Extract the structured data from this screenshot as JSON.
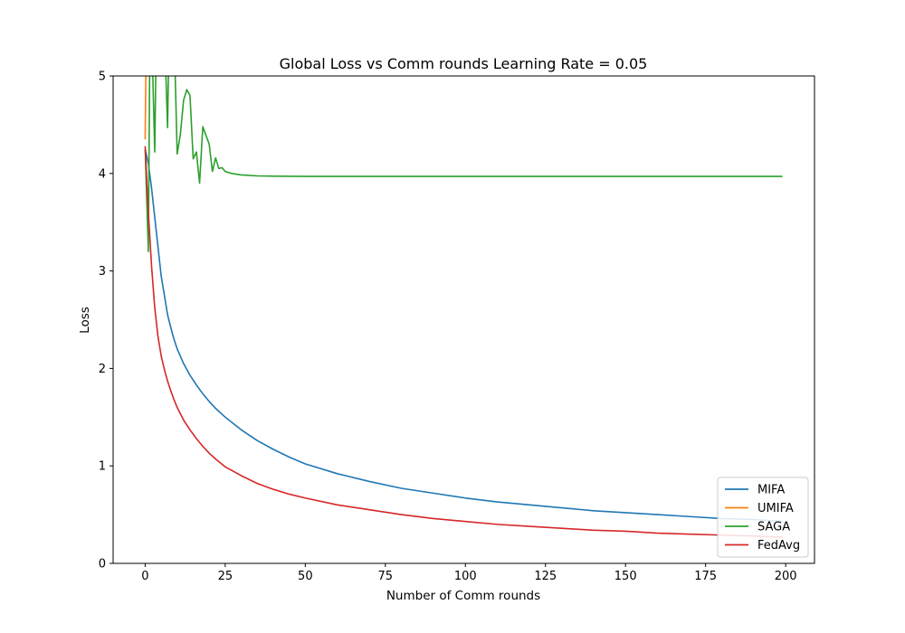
{
  "chart_data": {
    "type": "line",
    "title": "Global Loss vs Comm rounds Learning Rate = 0.05",
    "xlabel": "Number of Comm rounds",
    "ylabel": "Loss",
    "xlim": [
      -10,
      209
    ],
    "ylim": [
      0,
      5
    ],
    "xticks": [
      0,
      25,
      50,
      75,
      100,
      125,
      150,
      175,
      200
    ],
    "yticks": [
      0,
      1,
      2,
      3,
      4,
      5
    ],
    "grid": false,
    "legend_position": "lower-right",
    "series": [
      {
        "name": "MIFA",
        "color": "#1f77b4",
        "points": [
          [
            0,
            4.25
          ],
          [
            1,
            4.1
          ],
          [
            2,
            3.85
          ],
          [
            3,
            3.55
          ],
          [
            4,
            3.25
          ],
          [
            5,
            2.95
          ],
          [
            6,
            2.75
          ],
          [
            7,
            2.55
          ],
          [
            8,
            2.42
          ],
          [
            9,
            2.3
          ],
          [
            10,
            2.2
          ],
          [
            12,
            2.05
          ],
          [
            14,
            1.93
          ],
          [
            16,
            1.83
          ],
          [
            18,
            1.74
          ],
          [
            20,
            1.66
          ],
          [
            22,
            1.59
          ],
          [
            25,
            1.5
          ],
          [
            30,
            1.37
          ],
          [
            35,
            1.26
          ],
          [
            40,
            1.17
          ],
          [
            45,
            1.09
          ],
          [
            50,
            1.02
          ],
          [
            60,
            0.92
          ],
          [
            70,
            0.84
          ],
          [
            80,
            0.77
          ],
          [
            90,
            0.72
          ],
          [
            100,
            0.67
          ],
          [
            110,
            0.63
          ],
          [
            120,
            0.6
          ],
          [
            130,
            0.57
          ],
          [
            140,
            0.54
          ],
          [
            150,
            0.52
          ],
          [
            160,
            0.5
          ],
          [
            170,
            0.48
          ],
          [
            180,
            0.46
          ],
          [
            190,
            0.45
          ],
          [
            199,
            0.43
          ]
        ]
      },
      {
        "name": "UMIFA",
        "color": "#ff7f0e",
        "points": [
          [
            0,
            4.35
          ],
          [
            0.4,
            5.5
          ]
        ]
      },
      {
        "name": "SAGA",
        "color": "#2ca02c",
        "points": [
          [
            0,
            4.25
          ],
          [
            1,
            3.2
          ],
          [
            1.5,
            5.5
          ],
          [
            2,
            5.5
          ],
          [
            3,
            4.22
          ],
          [
            3.5,
            5.5
          ],
          [
            6,
            5.5
          ],
          [
            7,
            4.47
          ],
          [
            7.5,
            5.5
          ],
          [
            9,
            5.5
          ],
          [
            10,
            4.2
          ],
          [
            11,
            4.4
          ],
          [
            12,
            4.75
          ],
          [
            13,
            4.86
          ],
          [
            14,
            4.8
          ],
          [
            15,
            4.15
          ],
          [
            16,
            4.22
          ],
          [
            17,
            3.9
          ],
          [
            18,
            4.48
          ],
          [
            20,
            4.3
          ],
          [
            21,
            4.02
          ],
          [
            22,
            4.16
          ],
          [
            23,
            4.05
          ],
          [
            24,
            4.06
          ],
          [
            25,
            4.02
          ],
          [
            27,
            4.0
          ],
          [
            30,
            3.985
          ],
          [
            35,
            3.975
          ],
          [
            40,
            3.972
          ],
          [
            50,
            3.97
          ],
          [
            100,
            3.97
          ],
          [
            150,
            3.97
          ],
          [
            199,
            3.97
          ]
        ]
      },
      {
        "name": "FedAvg",
        "color": "#d62728",
        "points": [
          [
            0,
            4.28
          ],
          [
            1,
            3.6
          ],
          [
            2,
            3.05
          ],
          [
            3,
            2.62
          ],
          [
            4,
            2.33
          ],
          [
            5,
            2.13
          ],
          [
            6,
            1.99
          ],
          [
            7,
            1.87
          ],
          [
            8,
            1.77
          ],
          [
            9,
            1.68
          ],
          [
            10,
            1.6
          ],
          [
            12,
            1.47
          ],
          [
            14,
            1.37
          ],
          [
            16,
            1.28
          ],
          [
            18,
            1.2
          ],
          [
            20,
            1.13
          ],
          [
            22,
            1.07
          ],
          [
            25,
            0.99
          ],
          [
            30,
            0.9
          ],
          [
            35,
            0.82
          ],
          [
            40,
            0.76
          ],
          [
            45,
            0.71
          ],
          [
            50,
            0.67
          ],
          [
            60,
            0.6
          ],
          [
            70,
            0.55
          ],
          [
            80,
            0.5
          ],
          [
            90,
            0.46
          ],
          [
            100,
            0.43
          ],
          [
            110,
            0.4
          ],
          [
            120,
            0.38
          ],
          [
            130,
            0.36
          ],
          [
            140,
            0.34
          ],
          [
            150,
            0.33
          ],
          [
            160,
            0.31
          ],
          [
            170,
            0.3
          ],
          [
            180,
            0.29
          ],
          [
            190,
            0.28
          ],
          [
            199,
            0.27
          ]
        ]
      }
    ]
  }
}
